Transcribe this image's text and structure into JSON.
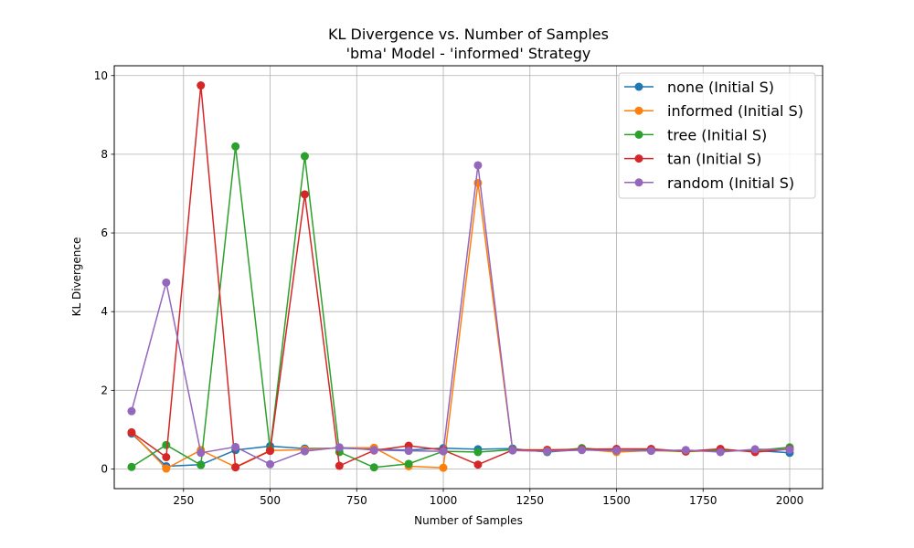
{
  "chart_data": {
    "type": "line",
    "title": "KL Divergence vs. Number of Samples",
    "subtitle": "'bma' Model - 'informed' Strategy",
    "xlabel": "Number of Samples",
    "ylabel": "KL Divergence",
    "xlim": [
      50,
      2095
    ],
    "ylim": [
      -0.5,
      10.25
    ],
    "xticks": [
      250,
      500,
      750,
      1000,
      1250,
      1500,
      1750,
      2000
    ],
    "yticks": [
      0,
      2,
      4,
      6,
      8,
      10
    ],
    "grid": true,
    "legend_position": "top-right",
    "x": [
      100,
      200,
      300,
      400,
      500,
      600,
      700,
      800,
      900,
      1000,
      1100,
      1200,
      1300,
      1400,
      1500,
      1600,
      1700,
      1800,
      1900,
      2000
    ],
    "series": [
      {
        "name": "none (Initial S)",
        "color": "#1f77b4",
        "values": [
          0.9,
          0.07,
          0.11,
          0.48,
          0.58,
          0.52,
          0.53,
          0.5,
          0.48,
          0.53,
          0.5,
          0.52,
          0.43,
          0.5,
          0.44,
          0.47,
          0.47,
          0.46,
          0.47,
          0.41
        ]
      },
      {
        "name": "informed (Initial S)",
        "color": "#ff7f0e",
        "values": [
          0.93,
          0.01,
          0.48,
          0.05,
          0.47,
          0.49,
          0.54,
          0.54,
          0.07,
          0.03,
          7.27,
          0.49,
          0.49,
          0.5,
          0.43,
          0.47,
          0.44,
          0.47,
          0.46,
          0.52
        ]
      },
      {
        "name": "tree (Initial S)",
        "color": "#2ca02c",
        "values": [
          0.05,
          0.61,
          0.1,
          8.2,
          0.49,
          7.95,
          0.43,
          0.04,
          0.13,
          0.45,
          0.43,
          0.49,
          0.44,
          0.53,
          0.47,
          0.48,
          0.45,
          0.47,
          0.47,
          0.55
        ]
      },
      {
        "name": "tan (Initial S)",
        "color": "#d62728",
        "values": [
          0.93,
          0.3,
          9.75,
          0.04,
          0.46,
          6.98,
          0.08,
          0.47,
          0.59,
          0.48,
          0.11,
          0.48,
          0.48,
          0.5,
          0.51,
          0.51,
          0.45,
          0.51,
          0.43,
          0.5
        ]
      },
      {
        "name": "random (Initial S)",
        "color": "#9467bd",
        "values": [
          1.47,
          4.74,
          0.41,
          0.56,
          0.12,
          0.45,
          0.55,
          0.48,
          0.46,
          0.45,
          7.72,
          0.47,
          0.45,
          0.48,
          0.47,
          0.46,
          0.48,
          0.43,
          0.5,
          0.49
        ]
      }
    ]
  }
}
